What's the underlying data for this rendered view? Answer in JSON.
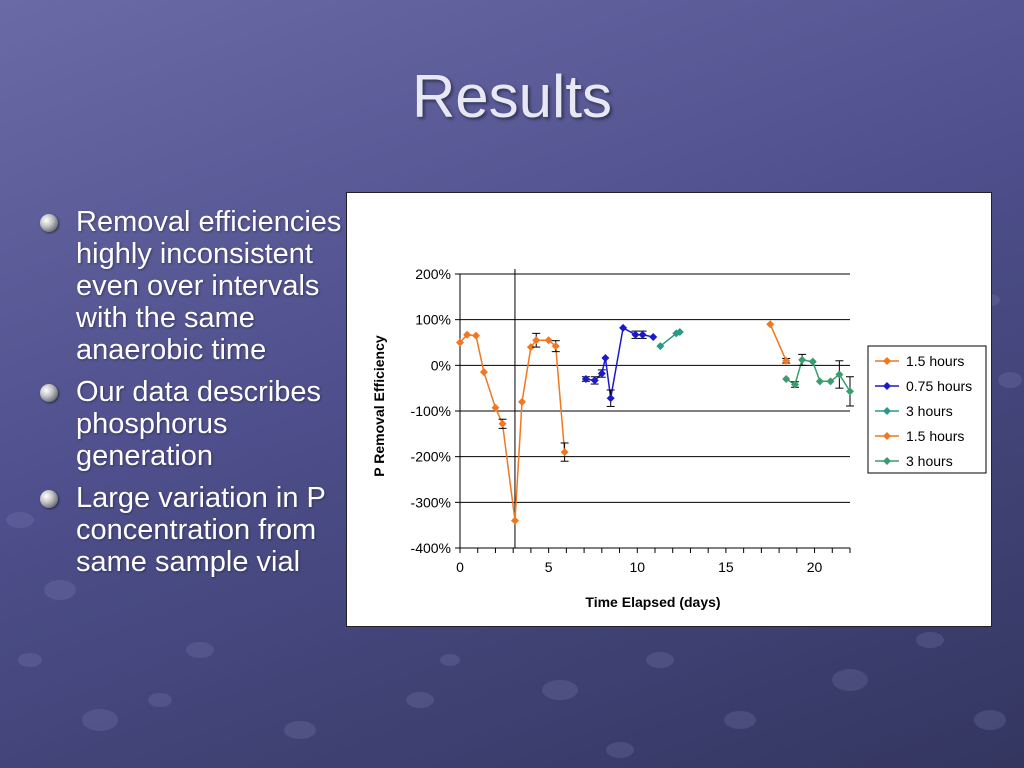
{
  "slide": {
    "title": "Results",
    "bullets": [
      "Removal efficiencies highly inconsistent even over intervals with the same anaerobic time",
      "Our data describes phosphorus generation",
      "Large variation in P concentration from same sample vial"
    ]
  },
  "colors": {
    "orange": "#f07820",
    "blue": "#1a1acc",
    "teal": "#2a9a86",
    "green": "#3c9c70"
  },
  "chart_data": {
    "type": "line",
    "xlabel": "Time Elapsed (days)",
    "ylabel": "P Removal Efficiency",
    "xlim": [
      0,
      22
    ],
    "ylim": [
      -400,
      200
    ],
    "xticks": [
      0,
      5,
      10,
      15,
      20
    ],
    "xtick_labels": [
      "0",
      "5",
      "10",
      "15",
      "20"
    ],
    "yticks": [
      200,
      100,
      0,
      -100,
      -200,
      -300,
      -400
    ],
    "ytick_labels": [
      "200%",
      "100%",
      "0%",
      "-100%",
      "-200%",
      "-300%",
      "-400%"
    ],
    "grid": "horizontal",
    "legend": "right",
    "marker_line_x": 3.1,
    "series": [
      {
        "name": "1.5 hours",
        "color": "#f07820",
        "x": [
          0.0,
          0.4,
          0.9,
          1.35,
          2.0,
          2.4,
          3.1,
          3.5,
          4.0,
          4.3,
          5.0,
          5.4,
          5.9
        ],
        "y": [
          50,
          67,
          65,
          -15,
          -93,
          -128,
          -340,
          -80,
          40,
          55,
          55,
          42,
          -190
        ],
        "err": [
          0,
          0,
          0,
          0,
          0,
          10,
          0,
          0,
          0,
          15,
          0,
          12,
          20
        ]
      },
      {
        "name": "0.75 hours",
        "color": "#1a1acc",
        "x": [
          7.1,
          7.6,
          8.0,
          8.2,
          8.5,
          9.2,
          9.9,
          10.3,
          10.9
        ],
        "y": [
          -30,
          -33,
          -18,
          16,
          -72,
          82,
          67,
          67,
          62
        ],
        "err": [
          5,
          8,
          8,
          0,
          18,
          0,
          8,
          8,
          0
        ]
      },
      {
        "name": "3 hours",
        "color": "#2a9a86",
        "x": [
          11.3,
          12.2,
          12.4
        ],
        "y": [
          42,
          70,
          73
        ],
        "err": [
          0,
          0,
          0
        ]
      },
      {
        "name": "1.5 hours",
        "color": "#f07820",
        "x": [
          17.5,
          18.4
        ],
        "y": [
          90,
          10
        ],
        "err": [
          0,
          5
        ]
      },
      {
        "name": "3 hours",
        "color": "#3c9c70",
        "x": [
          18.4,
          18.9,
          19.3,
          19.9,
          20.3,
          20.9,
          21.4,
          22.0
        ],
        "y": [
          -30,
          -42,
          12,
          8,
          -35,
          -35,
          -20,
          -57
        ],
        "err": [
          0,
          6,
          12,
          0,
          0,
          0,
          30,
          32
        ]
      }
    ]
  }
}
